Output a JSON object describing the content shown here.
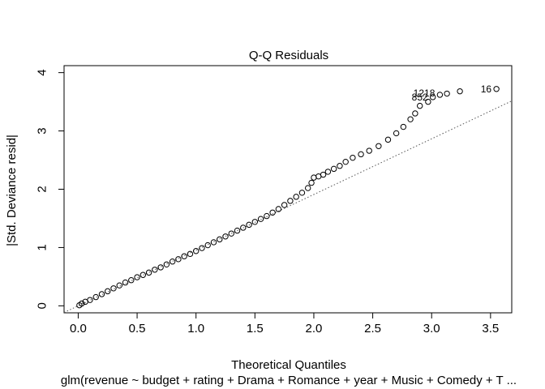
{
  "chart_data": {
    "type": "scatter",
    "title": "Q-Q Residuals",
    "xlabel": "Theoretical Quantiles",
    "ylabel": "|Std. Deviance resid|",
    "subtitle": "glm(revenue ~ budget + rating + Drama + Romance + year + Music + Comedy + T ...",
    "xlim": [
      -0.12,
      3.68
    ],
    "ylim": [
      -0.12,
      4.12
    ],
    "x_ticks": [
      0.0,
      0.5,
      1.0,
      1.5,
      2.0,
      2.5,
      3.0,
      3.5
    ],
    "x_tick_labels": [
      "0.0",
      "0.5",
      "1.0",
      "1.5",
      "2.0",
      "2.5",
      "3.0",
      "3.5"
    ],
    "y_ticks": [
      0,
      1,
      2,
      3,
      4
    ],
    "y_tick_labels": [
      "0",
      "1",
      "2",
      "3",
      "4"
    ],
    "reference_line": {
      "slope": 0.955,
      "intercept": 0.0,
      "style": "dotted"
    },
    "points": [
      [
        0.01,
        0.01
      ],
      [
        0.03,
        0.04
      ],
      [
        0.06,
        0.07
      ],
      [
        0.1,
        0.1
      ],
      [
        0.15,
        0.15
      ],
      [
        0.2,
        0.2
      ],
      [
        0.25,
        0.25
      ],
      [
        0.3,
        0.3
      ],
      [
        0.35,
        0.35
      ],
      [
        0.4,
        0.4
      ],
      [
        0.45,
        0.44
      ],
      [
        0.5,
        0.49
      ],
      [
        0.55,
        0.53
      ],
      [
        0.6,
        0.57
      ],
      [
        0.65,
        0.62
      ],
      [
        0.7,
        0.66
      ],
      [
        0.75,
        0.71
      ],
      [
        0.8,
        0.76
      ],
      [
        0.85,
        0.8
      ],
      [
        0.9,
        0.85
      ],
      [
        0.95,
        0.89
      ],
      [
        1.0,
        0.94
      ],
      [
        1.05,
        0.99
      ],
      [
        1.1,
        1.04
      ],
      [
        1.15,
        1.09
      ],
      [
        1.2,
        1.14
      ],
      [
        1.25,
        1.19
      ],
      [
        1.3,
        1.24
      ],
      [
        1.35,
        1.29
      ],
      [
        1.4,
        1.34
      ],
      [
        1.45,
        1.39
      ],
      [
        1.5,
        1.44
      ],
      [
        1.55,
        1.49
      ],
      [
        1.6,
        1.54
      ],
      [
        1.65,
        1.6
      ],
      [
        1.7,
        1.66
      ],
      [
        1.75,
        1.73
      ],
      [
        1.8,
        1.8
      ],
      [
        1.85,
        1.87
      ],
      [
        1.9,
        1.94
      ],
      [
        1.95,
        2.02
      ],
      [
        1.98,
        2.11
      ],
      [
        2.0,
        2.2
      ],
      [
        2.04,
        2.22
      ],
      [
        2.08,
        2.25
      ],
      [
        2.12,
        2.3
      ],
      [
        2.17,
        2.35
      ],
      [
        2.22,
        2.4
      ],
      [
        2.27,
        2.47
      ],
      [
        2.33,
        2.54
      ],
      [
        2.4,
        2.6
      ],
      [
        2.47,
        2.66
      ],
      [
        2.55,
        2.74
      ],
      [
        2.63,
        2.85
      ],
      [
        2.7,
        2.96
      ],
      [
        2.76,
        3.07
      ],
      [
        2.82,
        3.2
      ],
      [
        2.86,
        3.3
      ],
      [
        2.9,
        3.43
      ],
      [
        2.97,
        3.5
      ],
      [
        3.01,
        3.58
      ],
      [
        3.07,
        3.62
      ],
      [
        3.13,
        3.64
      ],
      [
        3.24,
        3.68
      ],
      [
        3.55,
        3.72
      ]
    ],
    "point_labels": [
      {
        "text": "16",
        "x": 3.55,
        "y": 3.72
      },
      {
        "text": "1218",
        "x": 3.07,
        "y": 3.65
      },
      {
        "text": "852",
        "x": 3.01,
        "y": 3.58
      }
    ],
    "grid": false,
    "legend": "none"
  }
}
